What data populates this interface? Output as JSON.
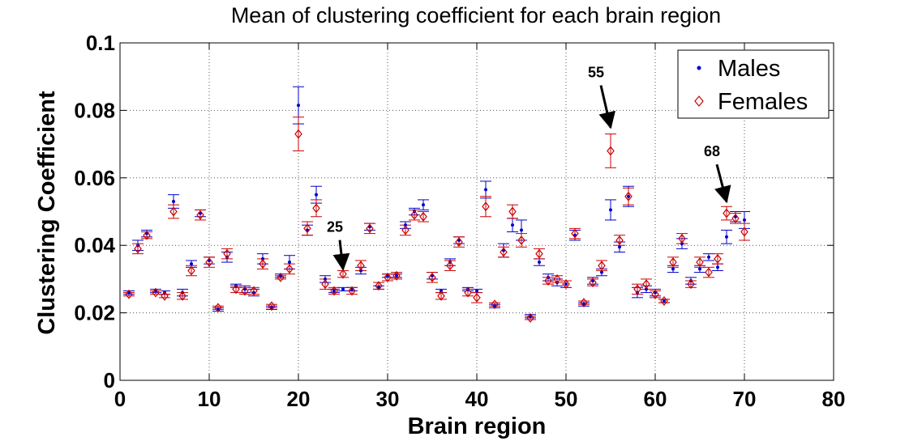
{
  "chart_data": {
    "type": "scatter",
    "title": "Mean of clustering coefficient for each brain region",
    "xlabel": "Brain region",
    "ylabel": "Clustering Coefficient",
    "xlim": [
      0,
      80
    ],
    "ylim": [
      0,
      0.1
    ],
    "xticks": [
      "0",
      "10",
      "20",
      "30",
      "40",
      "50",
      "60",
      "70",
      "80"
    ],
    "yticks": [
      "0",
      "0.02",
      "0.04",
      "0.06",
      "0.08",
      "0.1"
    ],
    "grid": true,
    "legend_position": "top-right",
    "series": [
      {
        "name": "Males",
        "color": "#0000cc",
        "marker": "dot",
        "x": [
          1,
          2,
          3,
          4,
          5,
          6,
          7,
          8,
          9,
          10,
          11,
          12,
          13,
          14,
          15,
          16,
          17,
          18,
          19,
          20,
          21,
          22,
          23,
          24,
          25,
          26,
          27,
          28,
          29,
          30,
          31,
          32,
          33,
          34,
          35,
          36,
          37,
          38,
          39,
          40,
          41,
          42,
          43,
          44,
          45,
          46,
          47,
          48,
          49,
          50,
          51,
          52,
          53,
          54,
          55,
          56,
          57,
          58,
          59,
          60,
          61,
          62,
          63,
          64,
          65,
          66,
          67,
          68,
          69,
          70
        ],
        "y": [
          0.026,
          0.04,
          0.0435,
          0.0265,
          0.026,
          0.053,
          0.026,
          0.0345,
          0.0495,
          0.0355,
          0.021,
          0.0365,
          0.028,
          0.027,
          0.026,
          0.036,
          0.0215,
          0.031,
          0.035,
          0.0815,
          0.0445,
          0.055,
          0.03,
          0.0265,
          0.027,
          0.027,
          0.0325,
          0.0455,
          0.0275,
          0.031,
          0.031,
          0.046,
          0.05,
          0.052,
          0.031,
          0.0265,
          0.035,
          0.0415,
          0.027,
          0.0265,
          0.0565,
          0.022,
          0.0385,
          0.046,
          0.0445,
          0.019,
          0.035,
          0.0305,
          0.029,
          0.0285,
          0.043,
          0.0225,
          0.0295,
          0.032,
          0.0505,
          0.0395,
          0.0545,
          0.026,
          0.027,
          0.026,
          0.0235,
          0.033,
          0.0405,
          0.0295,
          0.033,
          0.0365,
          0.0335,
          0.0425,
          0.0485,
          0.0475
        ],
        "err": [
          0.0005,
          0.0015,
          0.001,
          0.0005,
          0.0005,
          0.002,
          0.001,
          0.001,
          0.001,
          0.001,
          0.0005,
          0.0015,
          0.0005,
          0.001,
          0.001,
          0.0015,
          0.0005,
          0.0005,
          0.002,
          0.0055,
          0.0015,
          0.0025,
          0.001,
          0.0005,
          0.0005,
          0.0005,
          0.001,
          0.001,
          0.0005,
          0.0005,
          0.0005,
          0.001,
          0.001,
          0.0015,
          0.001,
          0.0005,
          0.001,
          0.001,
          0.0005,
          0.0005,
          0.0025,
          0.0005,
          0.002,
          0.002,
          0.003,
          0.0005,
          0.001,
          0.001,
          0.001,
          0.001,
          0.0015,
          0.0005,
          0.001,
          0.001,
          0.003,
          0.0015,
          0.003,
          0.0015,
          0.001,
          0.001,
          0.0005,
          0.001,
          0.0015,
          0.001,
          0.001,
          0.001,
          0.001,
          0.002,
          0.0015,
          0.0025
        ]
      },
      {
        "name": "Females",
        "color": "#cc0000",
        "marker": "diamond",
        "x": [
          1,
          2,
          3,
          4,
          5,
          6,
          7,
          8,
          9,
          10,
          11,
          12,
          13,
          14,
          15,
          16,
          17,
          18,
          19,
          20,
          21,
          22,
          23,
          24,
          25,
          26,
          27,
          28,
          29,
          30,
          31,
          32,
          33,
          34,
          35,
          36,
          37,
          38,
          39,
          40,
          41,
          42,
          43,
          44,
          45,
          46,
          47,
          48,
          49,
          50,
          51,
          52,
          53,
          54,
          55,
          56,
          57,
          58,
          59,
          60,
          61,
          62,
          63,
          64,
          65,
          66,
          67,
          68,
          69,
          70
        ],
        "y": [
          0.0255,
          0.039,
          0.043,
          0.026,
          0.025,
          0.05,
          0.025,
          0.0325,
          0.049,
          0.035,
          0.0215,
          0.0375,
          0.027,
          0.0265,
          0.0265,
          0.0345,
          0.022,
          0.0305,
          0.033,
          0.073,
          0.045,
          0.051,
          0.0285,
          0.0265,
          0.0315,
          0.0265,
          0.034,
          0.045,
          0.028,
          0.0305,
          0.031,
          0.0445,
          0.049,
          0.0485,
          0.0305,
          0.025,
          0.034,
          0.041,
          0.026,
          0.0245,
          0.0515,
          0.0225,
          0.038,
          0.05,
          0.0415,
          0.0185,
          0.0375,
          0.0295,
          0.03,
          0.0285,
          0.0435,
          0.023,
          0.029,
          0.034,
          0.068,
          0.0415,
          0.0545,
          0.027,
          0.0285,
          0.0255,
          0.0235,
          0.035,
          0.042,
          0.0285,
          0.035,
          0.032,
          0.036,
          0.0495,
          0.048,
          0.044
        ],
        "err": [
          0.0005,
          0.0015,
          0.001,
          0.0005,
          0.0005,
          0.002,
          0.001,
          0.0015,
          0.0015,
          0.0015,
          0.0005,
          0.0015,
          0.001,
          0.001,
          0.001,
          0.0015,
          0.0005,
          0.0005,
          0.0015,
          0.005,
          0.002,
          0.0025,
          0.0015,
          0.001,
          0.001,
          0.001,
          0.0015,
          0.0015,
          0.001,
          0.001,
          0.001,
          0.0015,
          0.0015,
          0.0015,
          0.0015,
          0.001,
          0.0015,
          0.0015,
          0.001,
          0.0015,
          0.003,
          0.0005,
          0.0015,
          0.002,
          0.002,
          0.0005,
          0.0015,
          0.001,
          0.001,
          0.001,
          0.0015,
          0.0005,
          0.001,
          0.0015,
          0.005,
          0.0015,
          0.0025,
          0.0015,
          0.0015,
          0.001,
          0.0005,
          0.0015,
          0.0015,
          0.001,
          0.0015,
          0.0015,
          0.0015,
          0.002,
          0.0015,
          0.0025
        ]
      }
    ],
    "annotations": [
      {
        "text": "25",
        "x": 25,
        "y": 0.0315
      },
      {
        "text": "55",
        "x": 55,
        "y": 0.0735
      },
      {
        "text": "68",
        "x": 68,
        "y": 0.0515
      }
    ]
  }
}
